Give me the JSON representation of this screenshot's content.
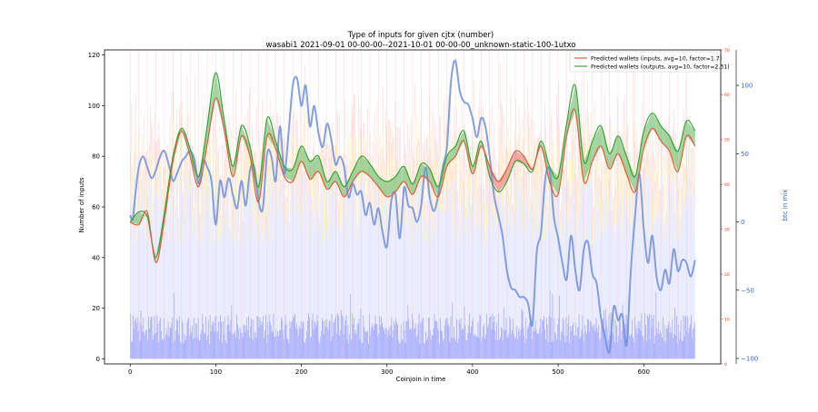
{
  "chart_data": {
    "type": "line",
    "title": "Type of inputs for given cjtx (number)",
    "subtitle": "wasabi1 2021-09-01 00-00-00--2021-10-01 00-00-00_unknown-static-100-1utxo",
    "xlabel": "Coinjoin in time",
    "ylabel": "Number of inputs",
    "y2label": "btc in mix",
    "xlim": [
      -30,
      690
    ],
    "ylim": [
      -2,
      122
    ],
    "y3lim": [
      0,
      70
    ],
    "y2lim": [
      -104,
      126
    ],
    "xticks": [
      0,
      100,
      200,
      300,
      400,
      500,
      600
    ],
    "yticks": [
      0,
      20,
      40,
      60,
      80,
      100,
      120
    ],
    "y2ticks": [
      -100,
      -50,
      0,
      50,
      100
    ],
    "y3ticks": [
      0,
      10,
      20,
      30,
      40,
      50,
      60,
      70
    ],
    "grid": false,
    "legend_position": "top-right",
    "colors": {
      "inputs_line": "#d9603b",
      "outputs_line": "#3aa13a",
      "inputs_fill": "#ee6a6a",
      "outputs_fill": "#5cb85c",
      "btc_line": "#6f8fdc",
      "bars_blue": "#aab0ff",
      "bars_light_blue": "#e6e8ff",
      "bars_yellow": "#ffeec0",
      "bars_pink": "#ffd6d6",
      "vlines": "#f3c8c8",
      "right_axis_red": "#e03020",
      "right_axis_blue": "#3465c8"
    },
    "series": [
      {
        "name": "Predicted wallets (inputs, avg=10, factor=1.7)",
        "x": [
          0,
          10,
          20,
          30,
          40,
          50,
          60,
          70,
          80,
          90,
          100,
          110,
          120,
          130,
          140,
          150,
          160,
          170,
          180,
          190,
          200,
          210,
          220,
          230,
          240,
          250,
          260,
          270,
          280,
          290,
          300,
          310,
          320,
          330,
          340,
          350,
          360,
          370,
          380,
          390,
          400,
          410,
          420,
          430,
          440,
          450,
          460,
          470,
          480,
          490,
          500,
          510,
          520,
          530,
          540,
          550,
          560,
          570,
          580,
          590,
          600,
          610,
          620,
          630,
          640,
          650,
          660
        ],
        "y": [
          54,
          53,
          58,
          38,
          55,
          78,
          90,
          80,
          68,
          85,
          103,
          90,
          72,
          88,
          80,
          62,
          88,
          83,
          72,
          70,
          78,
          71,
          74,
          67,
          70,
          64,
          70,
          74,
          72,
          68,
          64,
          66,
          70,
          65,
          72,
          70,
          64,
          76,
          80,
          86,
          73,
          84,
          76,
          70,
          75,
          82,
          80,
          75,
          84,
          70,
          65,
          88,
          98,
          70,
          78,
          84,
          75,
          81,
          73,
          66,
          83,
          91,
          86,
          82,
          74,
          88,
          84
        ]
      },
      {
        "name": "Predicted wallets (outputs, avg=10, factor=2.31)",
        "x": [
          0,
          10,
          20,
          30,
          40,
          50,
          60,
          70,
          80,
          90,
          100,
          110,
          120,
          130,
          140,
          150,
          160,
          170,
          180,
          190,
          200,
          210,
          220,
          230,
          240,
          250,
          260,
          270,
          280,
          290,
          300,
          310,
          320,
          330,
          340,
          350,
          360,
          370,
          380,
          390,
          400,
          410,
          420,
          430,
          440,
          450,
          460,
          470,
          480,
          490,
          500,
          510,
          520,
          530,
          540,
          550,
          560,
          570,
          580,
          590,
          600,
          610,
          620,
          630,
          640,
          650,
          660
        ],
        "y": [
          54,
          58,
          56,
          40,
          58,
          80,
          91,
          83,
          72,
          92,
          113,
          94,
          76,
          92,
          84,
          68,
          95,
          86,
          76,
          75,
          84,
          78,
          80,
          70,
          74,
          68,
          74,
          80,
          77,
          72,
          70,
          72,
          76,
          69,
          77,
          75,
          68,
          80,
          84,
          90,
          76,
          86,
          72,
          66,
          70,
          78,
          77,
          74,
          86,
          76,
          72,
          93,
          108,
          78,
          86,
          92,
          81,
          88,
          80,
          72,
          90,
          97,
          92,
          88,
          82,
          94,
          90
        ]
      },
      {
        "name": "btc in mix",
        "x": [
          0,
          3,
          6,
          10,
          15,
          20,
          25,
          30,
          35,
          40,
          45,
          50,
          55,
          60,
          65,
          70,
          75,
          80,
          85,
          90,
          95,
          100,
          105,
          110,
          115,
          120,
          125,
          130,
          135,
          140,
          145,
          150,
          155,
          160,
          165,
          170,
          175,
          180,
          185,
          190,
          195,
          200,
          205,
          210,
          215,
          220,
          225,
          230,
          235,
          240,
          245,
          250,
          255,
          260,
          265,
          270,
          275,
          280,
          285,
          290,
          295,
          300,
          305,
          310,
          315,
          320,
          325,
          330,
          335,
          340,
          345,
          350,
          355,
          360,
          365,
          370,
          375,
          380,
          385,
          390,
          395,
          400,
          405,
          410,
          415,
          420,
          425,
          430,
          435,
          440,
          445,
          450,
          455,
          460,
          465,
          470,
          475,
          480,
          485,
          490,
          495,
          500,
          505,
          510,
          515,
          520,
          525,
          530,
          535,
          540,
          545,
          550,
          555,
          560,
          565,
          570,
          575,
          580,
          585,
          590,
          595,
          600,
          605,
          610,
          615,
          620,
          625,
          630,
          635,
          640,
          645,
          650,
          655,
          660
        ],
        "y": [
          5,
          2,
          20,
          40,
          48,
          40,
          32,
          38,
          48,
          52,
          42,
          30,
          36,
          44,
          48,
          52,
          46,
          28,
          45,
          40,
          30,
          -2,
          30,
          18,
          32,
          20,
          10,
          30,
          12,
          38,
          40,
          15,
          10,
          50,
          48,
          30,
          70,
          35,
          65,
          100,
          105,
          85,
          100,
          70,
          85,
          65,
          55,
          72,
          60,
          42,
          48,
          40,
          18,
          28,
          20,
          22,
          5,
          14,
          -2,
          10,
          -8,
          -18,
          15,
          20,
          -12,
          25,
          12,
          10,
          0,
          12,
          40,
          18,
          8,
          20,
          40,
          55,
          104,
          118,
          96,
          88,
          86,
          76,
          62,
          76,
          70,
          48,
          20,
          5,
          -10,
          -35,
          -48,
          -50,
          -55,
          -55,
          -60,
          -75,
          -22,
          -8,
          32,
          38,
          4,
          -12,
          -30,
          -42,
          -10,
          -35,
          -50,
          -20,
          -15,
          -38,
          -45,
          -70,
          -85,
          -95,
          -62,
          -72,
          -68,
          -90,
          -35,
          5,
          35,
          -5,
          -30,
          -10,
          -40,
          -50,
          -35,
          -45,
          -20,
          -36,
          -28,
          -30,
          -40,
          -28
        ]
      }
    ]
  }
}
